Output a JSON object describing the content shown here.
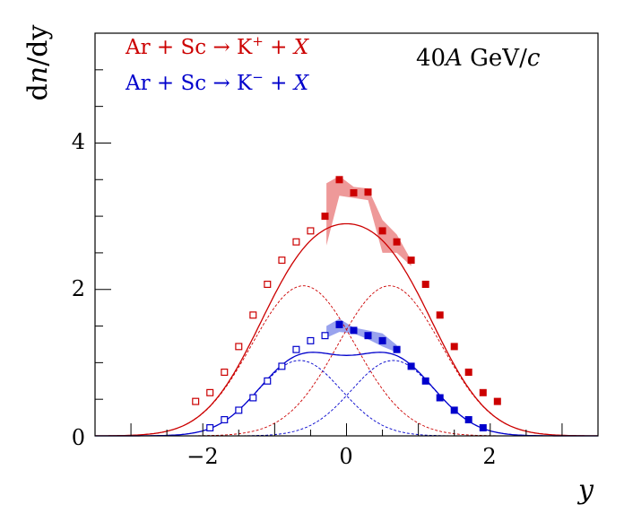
{
  "chart_data": {
    "type": "scatter",
    "title": "",
    "xlabel": "y",
    "ylabel": "dn/dy",
    "xlim": [
      -3.5,
      3.5
    ],
    "ylim": [
      0,
      5.5
    ],
    "x_ticks": [
      -2,
      0,
      2
    ],
    "y_ticks": [
      0,
      2,
      4
    ],
    "x_tick_labels": [
      "−2",
      "0",
      "2"
    ],
    "y_tick_labels": [
      "0",
      "2",
      "4"
    ],
    "energy_label": {
      "pre": "40",
      "italic": "A",
      "mid": " GeV/",
      "italic2": "c"
    },
    "series": [
      {
        "name": "Ar + Sc → K⁺ + X",
        "legend": {
          "pre": "Ar + Sc  → K",
          "sup": "+",
          "post": " + ",
          "italic": "X"
        },
        "color": "#cc0000",
        "band_color": "#ee9999",
        "fit": {
          "mu": 0.6,
          "sigma": 0.72,
          "amp": 2.05
        },
        "measured": [
          {
            "x": -0.3,
            "y": 3.0
          },
          {
            "x": -0.1,
            "y": 3.5
          },
          {
            "x": 0.1,
            "y": 3.32
          },
          {
            "x": 0.3,
            "y": 3.33
          },
          {
            "x": 0.5,
            "y": 2.8
          },
          {
            "x": 0.7,
            "y": 2.65
          },
          {
            "x": 0.9,
            "y": 2.4
          },
          {
            "x": 1.1,
            "y": 2.07
          },
          {
            "x": 1.3,
            "y": 1.65
          },
          {
            "x": 1.5,
            "y": 1.22
          },
          {
            "x": 1.7,
            "y": 0.87
          },
          {
            "x": 1.9,
            "y": 0.59
          },
          {
            "x": 2.1,
            "y": 0.47
          }
        ],
        "reflected": [
          {
            "x": -2.1,
            "y": 0.47
          },
          {
            "x": -1.9,
            "y": 0.59
          },
          {
            "x": -1.7,
            "y": 0.87
          },
          {
            "x": -1.5,
            "y": 1.22
          },
          {
            "x": -1.3,
            "y": 1.65
          },
          {
            "x": -1.1,
            "y": 2.07
          },
          {
            "x": -0.9,
            "y": 2.4
          },
          {
            "x": -0.7,
            "y": 2.65
          },
          {
            "x": -0.5,
            "y": 2.8
          }
        ],
        "band": {
          "x": [
            -0.28,
            -0.1,
            0.1,
            0.3,
            0.5,
            0.7,
            0.9
          ],
          "upper": [
            3.45,
            3.55,
            3.4,
            3.38,
            2.95,
            2.75,
            2.4
          ],
          "lower": [
            2.6,
            3.28,
            3.25,
            3.22,
            2.5,
            2.5,
            2.32
          ]
        }
      },
      {
        "name": "Ar + Sc → K⁻ + X",
        "legend": {
          "pre": "Ar + Sc  → K",
          "sup": "−",
          "post": " + ",
          "italic": "X"
        },
        "color": "#0000cc",
        "band_color": "#99a3ee",
        "fit": {
          "mu": 0.65,
          "sigma": 0.58,
          "amp": 1.03
        },
        "measured": [
          {
            "x": -0.1,
            "y": 1.52
          },
          {
            "x": 0.1,
            "y": 1.44
          },
          {
            "x": 0.3,
            "y": 1.37
          },
          {
            "x": 0.5,
            "y": 1.3
          },
          {
            "x": 0.7,
            "y": 1.18
          },
          {
            "x": 0.9,
            "y": 0.95
          },
          {
            "x": 1.1,
            "y": 0.75
          },
          {
            "x": 1.3,
            "y": 0.52
          },
          {
            "x": 1.5,
            "y": 0.35
          },
          {
            "x": 1.7,
            "y": 0.22
          },
          {
            "x": 1.9,
            "y": 0.11
          }
        ],
        "reflected": [
          {
            "x": -1.9,
            "y": 0.11
          },
          {
            "x": -1.7,
            "y": 0.22
          },
          {
            "x": -1.5,
            "y": 0.35
          },
          {
            "x": -1.3,
            "y": 0.52
          },
          {
            "x": -1.1,
            "y": 0.75
          },
          {
            "x": -0.9,
            "y": 0.95
          },
          {
            "x": -0.7,
            "y": 1.18
          },
          {
            "x": -0.5,
            "y": 1.3
          },
          {
            "x": -0.3,
            "y": 1.37
          }
        ],
        "band": {
          "x": [
            -0.28,
            -0.1,
            0.1,
            0.3,
            0.5,
            0.7
          ],
          "upper": [
            1.5,
            1.6,
            1.48,
            1.44,
            1.4,
            1.24
          ],
          "lower": [
            1.34,
            1.42,
            1.4,
            1.32,
            1.22,
            1.14
          ]
        }
      }
    ]
  }
}
